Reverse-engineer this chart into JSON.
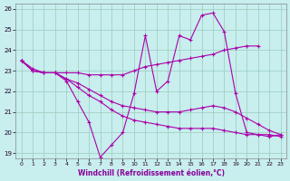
{
  "background_color": "#c8eeee",
  "grid_color": "#99ccbb",
  "line_color": "#aa00aa",
  "xlabel": "Windchill (Refroidissement éolien,°C)",
  "xlabel_color": "#880099",
  "xlim": [
    -0.5,
    23.5
  ],
  "ylim": [
    18.75,
    26.25
  ],
  "yticks": [
    19,
    20,
    21,
    22,
    23,
    24,
    25,
    26
  ],
  "xticks": [
    0,
    1,
    2,
    3,
    4,
    5,
    6,
    7,
    8,
    9,
    10,
    11,
    12,
    13,
    14,
    15,
    16,
    17,
    18,
    19,
    20,
    21,
    22,
    23
  ],
  "series": [
    {
      "x": [
        0,
        1,
        2,
        3,
        4,
        5,
        6,
        7,
        8,
        9,
        10,
        11,
        12,
        13,
        14,
        15,
        16,
        17,
        18,
        19,
        20,
        21,
        22,
        23
      ],
      "y": [
        23.5,
        23.1,
        22.9,
        22.9,
        22.5,
        21.5,
        20.5,
        18.8,
        19.4,
        20.0,
        21.9,
        24.7,
        22.0,
        22.5,
        24.7,
        24.5,
        25.7,
        25.8,
        24.9,
        21.9,
        20.0,
        19.9,
        19.8,
        19.9
      ]
    },
    {
      "x": [
        0,
        1,
        2,
        3,
        4,
        5,
        6,
        7,
        8,
        9,
        10,
        11,
        12,
        13,
        14,
        15,
        16,
        17,
        18,
        19,
        20,
        21
      ],
      "y": [
        23.5,
        23.0,
        22.9,
        22.9,
        22.9,
        22.9,
        22.8,
        22.8,
        22.8,
        22.8,
        23.0,
        23.2,
        23.3,
        23.4,
        23.5,
        23.6,
        23.7,
        23.8,
        24.0,
        24.1,
        24.2,
        24.2
      ]
    },
    {
      "x": [
        0,
        1,
        2,
        3,
        4,
        5,
        6,
        7,
        8,
        9,
        10,
        11,
        12,
        13,
        14,
        15,
        16,
        17,
        18,
        19,
        20,
        21,
        22,
        23
      ],
      "y": [
        23.5,
        23.0,
        22.9,
        22.9,
        22.6,
        22.4,
        22.1,
        21.8,
        21.5,
        21.3,
        21.2,
        21.1,
        21.0,
        21.0,
        21.0,
        21.1,
        21.2,
        21.3,
        21.2,
        21.0,
        20.7,
        20.4,
        20.1,
        19.9
      ]
    },
    {
      "x": [
        0,
        1,
        2,
        3,
        4,
        5,
        6,
        7,
        8,
        9,
        10,
        11,
        12,
        13,
        14,
        15,
        16,
        17,
        18,
        19,
        20,
        21,
        22,
        23
      ],
      "y": [
        23.5,
        23.0,
        22.9,
        22.9,
        22.6,
        22.2,
        21.8,
        21.5,
        21.1,
        20.8,
        20.6,
        20.5,
        20.4,
        20.3,
        20.2,
        20.2,
        20.2,
        20.2,
        20.1,
        20.0,
        19.9,
        19.9,
        19.9,
        19.8
      ]
    }
  ]
}
